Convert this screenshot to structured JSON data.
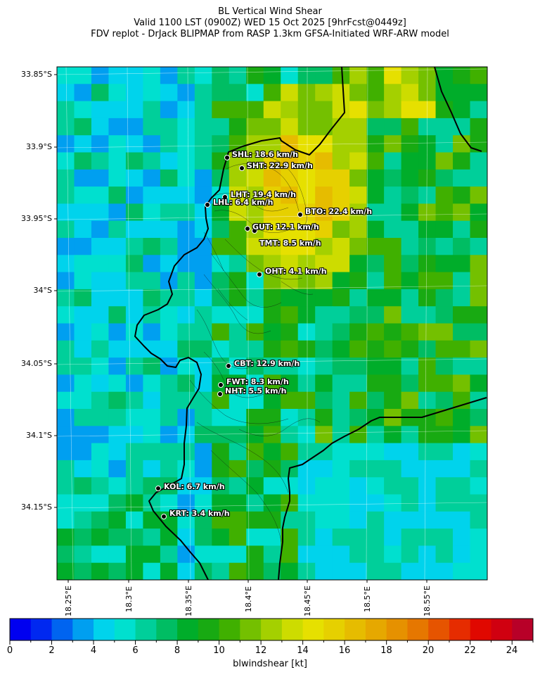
{
  "title": {
    "line1": "BL Vertical Wind Shear",
    "line2": "Valid 1100 LST (0900Z) WED 15 Oct 2025 [9hrFcst@0449z]",
    "line3": "FDV replot - DrJack BLIPMAP from RASP 1.3km GFSA-Initiated WRF-ARW model"
  },
  "map": {
    "lat_labels": [
      "33.85°S",
      "33.9°S",
      "33.95°S",
      "34°S",
      "34.05°S",
      "34.1°S",
      "34.15°S"
    ],
    "lon_labels": [
      "18.25°E",
      "18.3°E",
      "18.35°E",
      "18.4°E",
      "18.45°E",
      "18.5°E",
      "18.55°E"
    ],
    "stations": [
      {
        "code": "SHL",
        "label": "SHL: 18.6 km/h"
      },
      {
        "code": "SHT",
        "label": "SHT: 22.9 km/h"
      },
      {
        "code": "LHT",
        "label": "LHT: 19.4 km/h"
      },
      {
        "code": "LHL",
        "label": "LHL: 6.4 km/h"
      },
      {
        "code": "BTO",
        "label": "BTO: 22.4 km/h"
      },
      {
        "code": "GUT",
        "label": "GUT: 12.1 km/h"
      },
      {
        "code": "TMT",
        "label": "TMT: 8.5 km/h"
      },
      {
        "code": "OHT",
        "label": "OHT: 4.1 km/h"
      },
      {
        "code": "CBT",
        "label": "CBT: 12.9 km/h"
      },
      {
        "code": "FWT",
        "label": "FWT: 8.3 km/h"
      },
      {
        "code": "NHT",
        "label": "NHT: 5.5 km/h"
      },
      {
        "code": "KOL",
        "label": "KOL: 6.7 km/h"
      },
      {
        "code": "KRT",
        "label": "KRT: 3.4 km/h"
      }
    ]
  },
  "colorbar": {
    "title": "blwindshear [kt]",
    "tick_labels": [
      "0",
      "2",
      "4",
      "6",
      "8",
      "10",
      "12",
      "14",
      "16",
      "18",
      "20",
      "22",
      "24"
    ],
    "colors": [
      "#0000f0",
      "#0028f0",
      "#0064f0",
      "#009ff0",
      "#00d3ec",
      "#00e0cf",
      "#00cf9a",
      "#00bd63",
      "#00ad2a",
      "#18aa12",
      "#40b000",
      "#74c000",
      "#a4d000",
      "#cddc00",
      "#e6e000",
      "#e6d000",
      "#e6bc00",
      "#e6a800",
      "#e69100",
      "#e67700",
      "#e65400",
      "#e62c00",
      "#e00800",
      "#d00010",
      "#b80028"
    ]
  }
}
